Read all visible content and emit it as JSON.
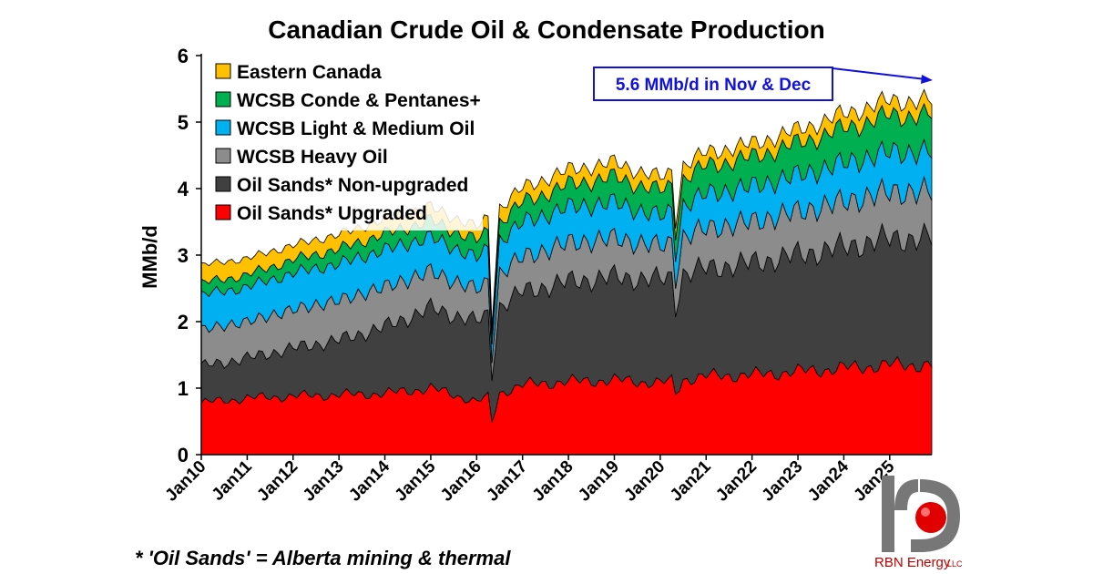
{
  "chart_data": {
    "type": "area",
    "stacked": true,
    "title": "Canadian Crude Oil & Condensate Production",
    "ylabel": "MMb/d",
    "xlabel": "",
    "ylim": [
      0,
      6
    ],
    "yticks": [
      "0",
      "1",
      "2",
      "3",
      "4",
      "5",
      "6"
    ],
    "x_start": "Jan10",
    "x_end": "Dec25",
    "xtick_labels": [
      "Jan10",
      "Jan11",
      "Jan12",
      "Jan13",
      "Jan14",
      "Jan15",
      "Jan16",
      "Jan17",
      "Jan18",
      "Jan19",
      "Jan20",
      "Jan21",
      "Jan22",
      "Jan23",
      "Jan24",
      "Jan25"
    ],
    "grid": false,
    "legend_position": "top-left",
    "x_annual": [
      "2010",
      "2011",
      "2012",
      "2013",
      "2014",
      "2015",
      "2016",
      "2017",
      "2018",
      "2019",
      "2020",
      "2021",
      "2022",
      "2023",
      "2024",
      "2025"
    ],
    "series": [
      {
        "name": "Oil Sands* Upgraded",
        "color": "#ff0000",
        "annual_values": [
          0.78,
          0.85,
          0.88,
          0.9,
          0.92,
          1.0,
          0.8,
          1.05,
          1.1,
          1.12,
          1.08,
          1.18,
          1.2,
          1.25,
          1.3,
          1.35
        ]
      },
      {
        "name": "Oil Sands* Non-upgraded",
        "color": "#404040",
        "annual_values": [
          0.55,
          0.6,
          0.72,
          0.82,
          1.0,
          1.2,
          1.2,
          1.4,
          1.5,
          1.55,
          1.55,
          1.62,
          1.68,
          1.75,
          1.82,
          1.9
        ]
      },
      {
        "name": "WCSB Heavy Oil",
        "color": "#8c8c8c",
        "annual_values": [
          0.55,
          0.55,
          0.58,
          0.6,
          0.6,
          0.55,
          0.48,
          0.52,
          0.58,
          0.58,
          0.5,
          0.6,
          0.62,
          0.65,
          0.68,
          0.7
        ]
      },
      {
        "name": "WCSB Light & Medium Oil",
        "color": "#00b0f0",
        "annual_values": [
          0.52,
          0.52,
          0.55,
          0.55,
          0.56,
          0.52,
          0.48,
          0.52,
          0.54,
          0.54,
          0.45,
          0.52,
          0.53,
          0.55,
          0.58,
          0.6
        ]
      },
      {
        "name": "WCSB Conde & Pentanes+",
        "color": "#00b050",
        "annual_values": [
          0.18,
          0.18,
          0.2,
          0.22,
          0.24,
          0.25,
          0.26,
          0.3,
          0.34,
          0.38,
          0.38,
          0.42,
          0.44,
          0.48,
          0.52,
          0.55
        ]
      },
      {
        "name": "Eastern Canada",
        "color": "#ffc000",
        "annual_values": [
          0.27,
          0.25,
          0.22,
          0.22,
          0.22,
          0.2,
          0.2,
          0.22,
          0.22,
          0.22,
          0.2,
          0.2,
          0.2,
          0.2,
          0.22,
          0.22
        ]
      }
    ],
    "annotation": {
      "text": "5.6 MMb/d in Nov & Dec",
      "value": 5.6,
      "color": "#1010e0"
    },
    "footnote": "* 'Oil Sands' = Alberta mining & thermal"
  },
  "logo": {
    "name": "RBN Energy",
    "suffix": "LLC",
    "icon": "rbn-logo-icon"
  }
}
